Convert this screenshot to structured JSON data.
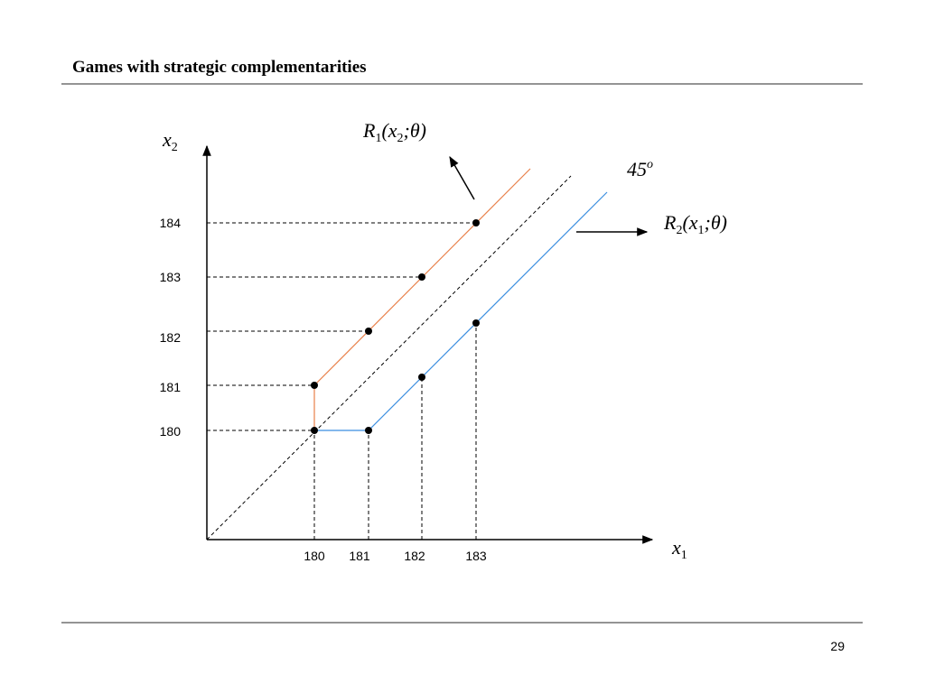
{
  "header": {
    "title": "Games with strategic complementarities"
  },
  "page_number": "29",
  "y_axis": {
    "label": [
      {
        "text": "x"
      },
      {
        "text": "2",
        "sub": true
      }
    ],
    "tick_labels": [
      "184",
      "183",
      "182",
      "181",
      "180"
    ]
  },
  "x_axis": {
    "label": [
      {
        "text": "x"
      },
      {
        "text": "1",
        "sub": true
      }
    ],
    "tick_labels": [
      "180",
      "181",
      "182",
      "183"
    ]
  },
  "curves": {
    "r1": {
      "label": [
        {
          "text": "R"
        },
        {
          "text": "1",
          "sub": true
        },
        {
          "text": "(x"
        },
        {
          "text": "2",
          "sub": true
        },
        {
          "text": ";θ)"
        }
      ],
      "color": "#e8804a"
    },
    "r2": {
      "label": [
        {
          "text": "R"
        },
        {
          "text": "2",
          "sub": true
        },
        {
          "text": "(x"
        },
        {
          "text": "1",
          "sub": true
        },
        {
          "text": ";θ)"
        }
      ],
      "color": "#3b8ee0"
    },
    "diagonal": {
      "label": [
        {
          "text": "45"
        },
        {
          "text": "o",
          "sup": true
        }
      ]
    }
  }
}
